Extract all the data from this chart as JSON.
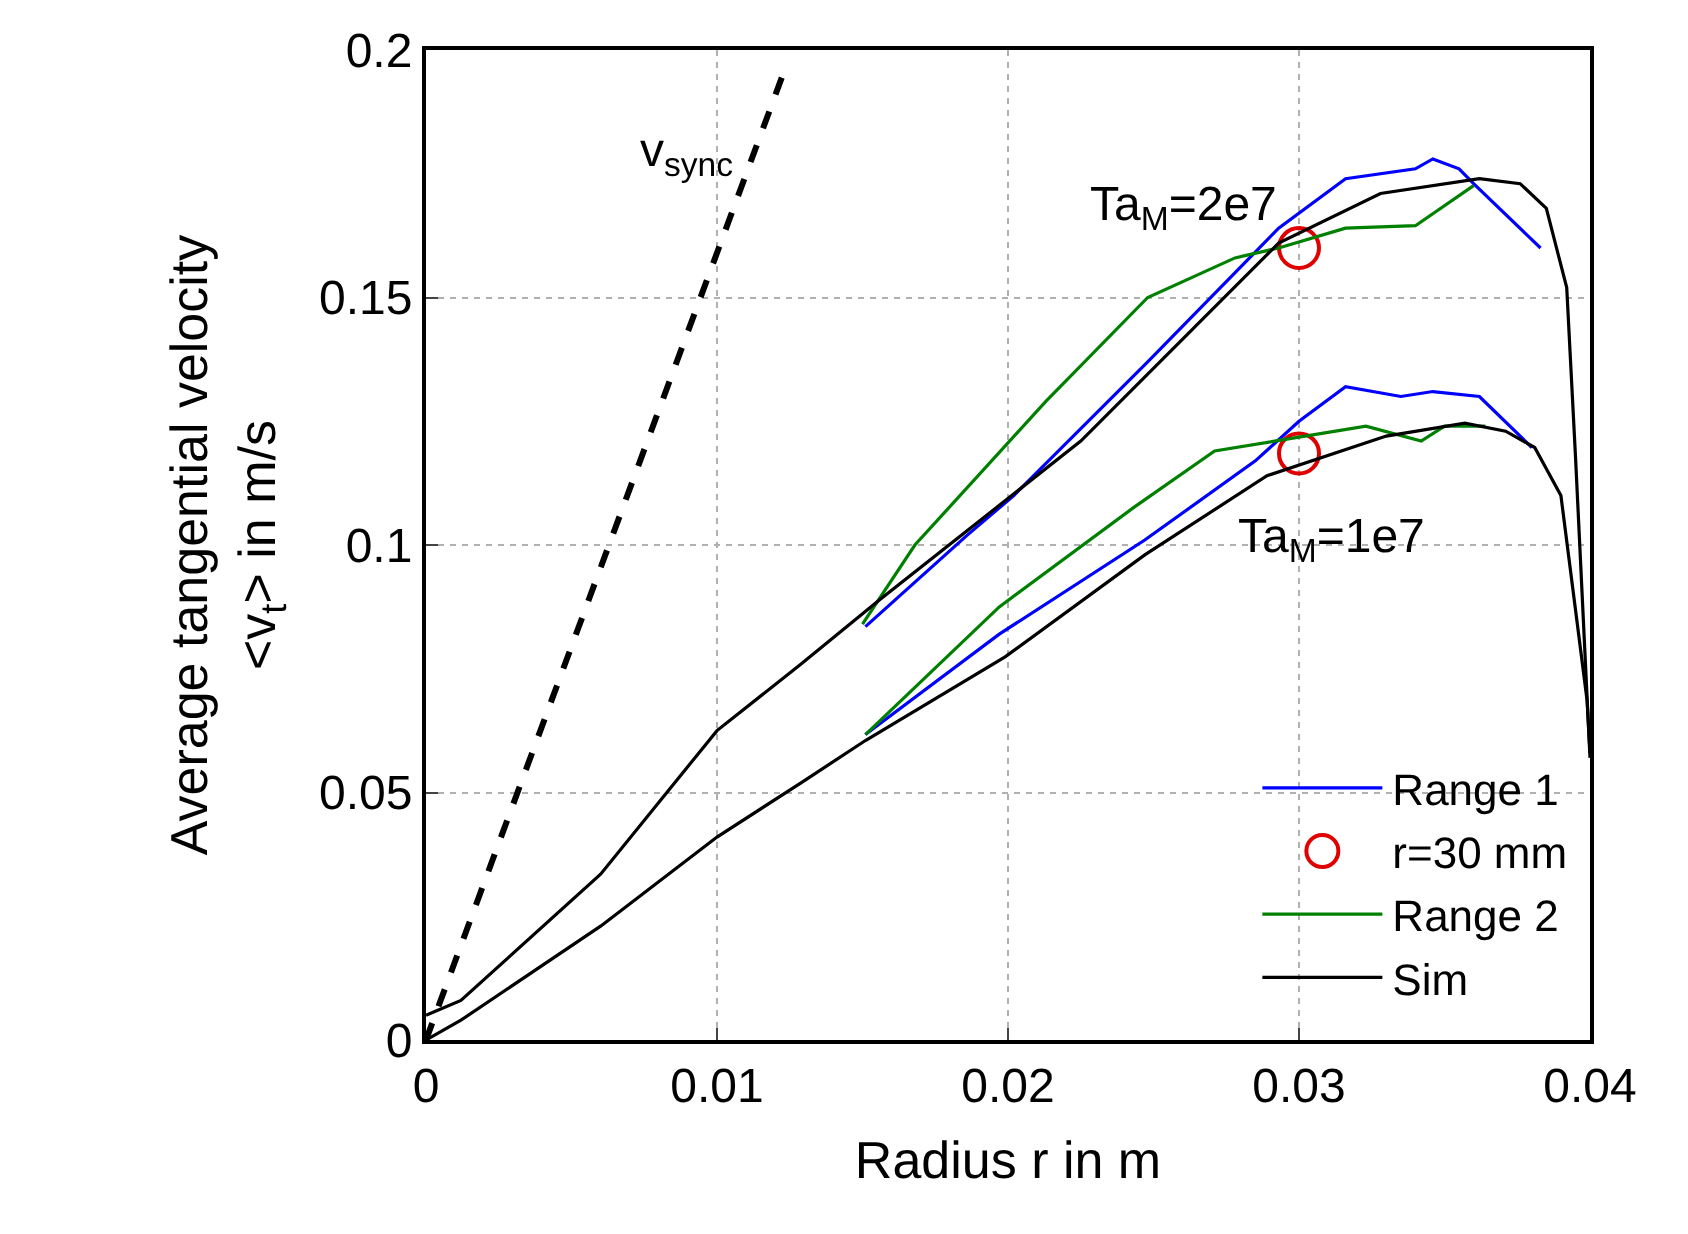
{
  "chart_data": {
    "type": "line",
    "xlabel": "Radius r in m",
    "ylabel": "Average tangential velocity\n<v$_{t}$> in m/s",
    "xlim": [
      0,
      0.04
    ],
    "ylim": [
      0,
      0.2
    ],
    "xticks": [
      0,
      0.01,
      0.02,
      0.03,
      0.04
    ],
    "yticks": [
      0,
      0.05,
      0.1,
      0.15,
      0.2
    ],
    "grid": true,
    "legend": "bottom right",
    "marker": "none",
    "line_style": "solid",
    "series": [
      {
        "name": "Range 1",
        "color": "#0000ff",
        "x": [
          0.0151,
          0.0186,
          0.0202,
          0.0248,
          0.0293,
          0.0316,
          0.034,
          0.0346,
          0.0355,
          0.036,
          0.0383
        ],
        "values": [
          0.0835,
          0.102,
          0.11,
          0.137,
          0.164,
          0.174,
          0.176,
          0.178,
          0.176,
          0.173,
          0.16
        ]
      },
      {
        "color": "#0000ff",
        "x": [
          0.0151,
          0.0197,
          0.0247,
          0.0285,
          0.03,
          0.0316,
          0.0335,
          0.0346,
          0.0362,
          0.038
        ],
        "values": [
          0.0617,
          0.082,
          0.101,
          0.117,
          0.125,
          0.132,
          0.13,
          0.131,
          0.13,
          0.1197
        ]
      },
      {
        "name": "r=30 mm",
        "type": "scatter",
        "marker": "circle",
        "color": "#e00000",
        "x": [
          0.03,
          0.03
        ],
        "values": [
          0.16,
          0.1185
        ]
      },
      {
        "name": "Range 2",
        "color": "#008000",
        "x": [
          0.015,
          0.0168,
          0.0213,
          0.0248,
          0.0278,
          0.0293,
          0.0316,
          0.034,
          0.036
        ],
        "values": [
          0.084,
          0.1,
          0.129,
          0.15,
          0.158,
          0.16,
          0.164,
          0.1645,
          0.1726
        ]
      },
      {
        "color": "#008000",
        "x": [
          0.0151,
          0.0197,
          0.0243,
          0.0271,
          0.03,
          0.0323,
          0.0342,
          0.035,
          0.0364
        ],
        "values": [
          0.0617,
          0.0875,
          0.1075,
          0.119,
          0.1218,
          0.124,
          0.121,
          0.124,
          0.124
        ]
      },
      {
        "name": "Sim",
        "color": "#000000",
        "x": [
          0,
          0.0012,
          0.006,
          0.01,
          0.0129,
          0.0156,
          0.0225,
          0.0293,
          0.0328,
          0.0362,
          0.0376,
          0.0385,
          0.0392,
          0.0395,
          0.04
        ],
        "values": [
          0.005,
          0.008,
          0.0335,
          0.0625,
          0.076,
          0.089,
          0.121,
          0.161,
          0.171,
          0.174,
          0.173,
          0.168,
          0.152,
          0.118,
          0.057
        ]
      },
      {
        "color": "#000000",
        "x": [
          0,
          0.0012,
          0.006,
          0.01,
          0.0129,
          0.0151,
          0.0199,
          0.0247,
          0.0289,
          0.033,
          0.0357,
          0.0371,
          0.0381,
          0.039,
          0.0399,
          0.04
        ],
        "values": [
          0,
          0.004,
          0.023,
          0.041,
          0.052,
          0.0605,
          0.0774,
          0.098,
          0.114,
          0.122,
          0.1246,
          0.123,
          0.1197,
          0.11,
          0.0686,
          0.058
        ]
      },
      {
        "color": "#000000",
        "line_style": "dashed",
        "x": [
          0,
          0.0123
        ],
        "values": [
          0,
          0.1956
        ]
      }
    ],
    "annotations": [
      "v$_{sync}$",
      "Ta$_{M}$=2e7",
      "Ta$_{M}$=1e7"
    ]
  }
}
